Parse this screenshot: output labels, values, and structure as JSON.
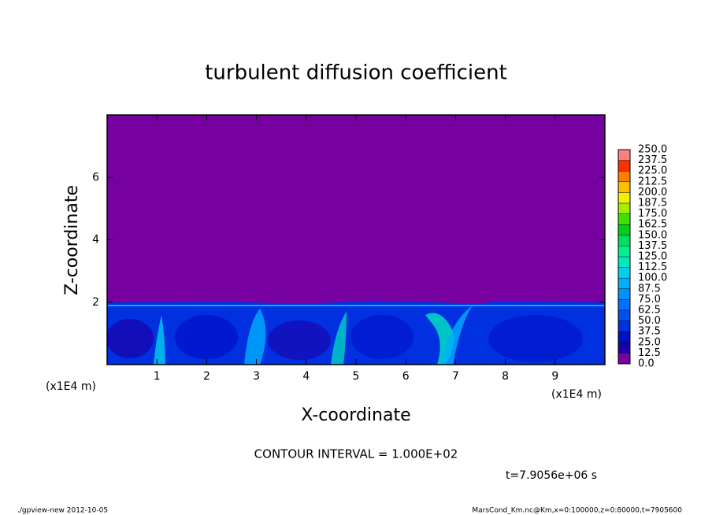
{
  "chart_data": {
    "type": "contour",
    "title": "turbulent diffusion coefficient",
    "x_label": "X-coordinate",
    "y_label": "Z-coordinate",
    "x_unit": "(x1E4 m)",
    "y_unit": "(x1E4 m)",
    "xlim": [
      0,
      10
    ],
    "xticks": [
      1,
      2,
      3,
      4,
      5,
      6,
      7,
      8,
      9
    ],
    "ylim": [
      0,
      8
    ],
    "yticks": [
      2,
      4,
      6
    ],
    "contour_interval": "CONTOUR INTERVAL = 1.000E+02",
    "time": "t=7.9056e+06 s",
    "footer_left": "./gpview-new  2012-10-05",
    "footer_right": "MarsCond_Km.nc@Km,x=0:100000,z=0:80000,t=7905600",
    "colorbar": {
      "levels": [
        {
          "value": 0,
          "label": "0.0"
        },
        {
          "value": 12.5,
          "label": "12.5"
        },
        {
          "value": 25,
          "label": "25.0"
        },
        {
          "value": 37.5,
          "label": "37.5"
        },
        {
          "value": 50,
          "label": "50.0"
        },
        {
          "value": 62.5,
          "label": "62.5"
        },
        {
          "value": 75,
          "label": "75.0"
        },
        {
          "value": 87.5,
          "label": "87.5"
        },
        {
          "value": 100,
          "label": "100.0"
        },
        {
          "value": 112.5,
          "label": "112.5"
        },
        {
          "value": 125,
          "label": "125.0"
        },
        {
          "value": 137.5,
          "label": "137.5"
        },
        {
          "value": 150,
          "label": "150.0"
        },
        {
          "value": 162.5,
          "label": "162.5"
        },
        {
          "value": 175,
          "label": "175.0"
        },
        {
          "value": 187.5,
          "label": "187.5"
        },
        {
          "value": 200,
          "label": "200.0"
        },
        {
          "value": 212.5,
          "label": "212.5"
        },
        {
          "value": 225,
          "label": "225.0"
        },
        {
          "value": 237.5,
          "label": "237.5"
        },
        {
          "value": 250,
          "label": "250.0"
        }
      ],
      "colors": [
        "#7700a0",
        "#1a00a8",
        "#0010c8",
        "#0030e0",
        "#0050f0",
        "#0070ff",
        "#0090ff",
        "#00b0ff",
        "#00d0f0",
        "#00e8c0",
        "#00f090",
        "#00e060",
        "#00d020",
        "#40e000",
        "#a0f000",
        "#f0f000",
        "#ffc000",
        "#ff8000",
        "#ff3000",
        "#ff8080"
      ]
    }
  }
}
